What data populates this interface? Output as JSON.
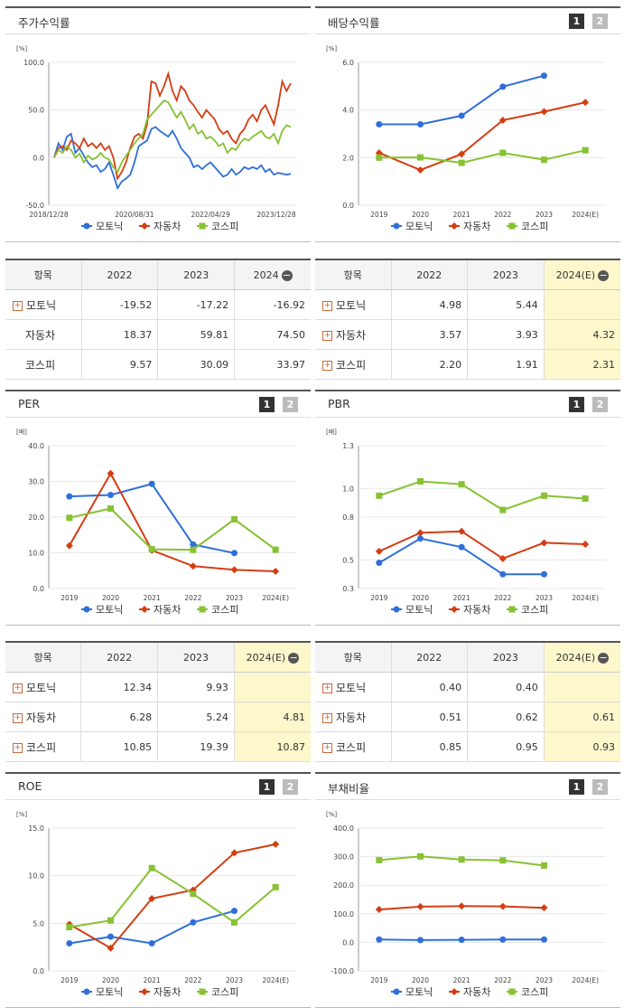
{
  "colors": {
    "motonic": "#2f6fd8",
    "auto": "#d43d12",
    "kospi": "#86c232"
  },
  "legend": [
    "모토닉",
    "자동차",
    "코스피"
  ],
  "pager": [
    "1",
    "2"
  ],
  "panels": {
    "stock": {
      "title": "주가수익률"
    },
    "dividend": {
      "title": "배당수익률"
    },
    "per": {
      "title": "PER"
    },
    "pbr": {
      "title": "PBR"
    },
    "roe": {
      "title": "ROE"
    },
    "debt": {
      "title": "부채비율"
    }
  },
  "tables": {
    "stock": {
      "headers": [
        "항목",
        "2022",
        "2023",
        "2024"
      ],
      "rows": [
        {
          "name": "모토닉",
          "v": [
            "-19.52",
            "-17.22",
            "-16.92"
          ],
          "plus": true
        },
        {
          "name": "자동차",
          "v": [
            "18.37",
            "59.81",
            "74.50"
          ],
          "plus": false
        },
        {
          "name": "코스피",
          "v": [
            "9.57",
            "30.09",
            "33.97"
          ],
          "plus": false
        }
      ]
    },
    "dividend": {
      "headers": [
        "항목",
        "2022",
        "2023",
        "2024(E)"
      ],
      "rows": [
        {
          "name": "모토닉",
          "v": [
            "4.98",
            "5.44",
            ""
          ],
          "plus": true
        },
        {
          "name": "자동차",
          "v": [
            "3.57",
            "3.93",
            "4.32"
          ],
          "plus": true
        },
        {
          "name": "코스피",
          "v": [
            "2.20",
            "1.91",
            "2.31"
          ],
          "plus": true
        }
      ]
    },
    "per": {
      "headers": [
        "항목",
        "2022",
        "2023",
        "2024(E)"
      ],
      "rows": [
        {
          "name": "모토닉",
          "v": [
            "12.34",
            "9.93",
            ""
          ],
          "plus": true
        },
        {
          "name": "자동차",
          "v": [
            "6.28",
            "5.24",
            "4.81"
          ],
          "plus": true
        },
        {
          "name": "코스피",
          "v": [
            "10.85",
            "19.39",
            "10.87"
          ],
          "plus": true
        }
      ]
    },
    "pbr": {
      "headers": [
        "항목",
        "2022",
        "2023",
        "2024(E)"
      ],
      "rows": [
        {
          "name": "모토닉",
          "v": [
            "0.40",
            "0.40",
            ""
          ],
          "plus": true
        },
        {
          "name": "자동차",
          "v": [
            "0.51",
            "0.62",
            "0.61"
          ],
          "plus": true
        },
        {
          "name": "코스피",
          "v": [
            "0.85",
            "0.95",
            "0.93"
          ],
          "plus": true
        }
      ]
    }
  },
  "chart_data": [
    {
      "id": "stock",
      "type": "line",
      "unit": "[%]",
      "x_ticks": [
        "2018/12/28",
        "2020/08/31",
        "2022/04/29",
        "2023/12/28"
      ],
      "ylim": [
        -50,
        100
      ],
      "y_ticks": [
        "100.0",
        "50.0",
        "0.0",
        "-50.0"
      ],
      "series": [
        {
          "name": "모토닉",
          "values": [
            0,
            15,
            8,
            22,
            25,
            5,
            10,
            2,
            -5,
            -10,
            -8,
            -15,
            -12,
            -5,
            -18,
            -32,
            -25,
            -22,
            -18,
            -5,
            12,
            15,
            18,
            30,
            32,
            28,
            25,
            22,
            28,
            20,
            10,
            5,
            0,
            -10,
            -8,
            -12,
            -8,
            -5,
            -10,
            -15,
            -20,
            -18,
            -12,
            -18,
            -15,
            -10,
            -12,
            -10,
            -12,
            -8,
            -15,
            -12,
            -18,
            -16,
            -17,
            -18,
            -17
          ]
        },
        {
          "name": "자동차",
          "values": [
            0,
            10,
            12,
            8,
            18,
            15,
            10,
            20,
            12,
            15,
            10,
            15,
            8,
            12,
            0,
            -22,
            -15,
            -5,
            10,
            22,
            25,
            20,
            35,
            80,
            78,
            65,
            75,
            88,
            70,
            60,
            75,
            70,
            60,
            55,
            48,
            42,
            50,
            45,
            40,
            30,
            25,
            28,
            20,
            15,
            25,
            30,
            40,
            45,
            38,
            50,
            55,
            45,
            35,
            55,
            80,
            70,
            78
          ]
        },
        {
          "name": "코스피",
          "values": [
            0,
            8,
            5,
            12,
            8,
            0,
            4,
            -5,
            2,
            -2,
            0,
            5,
            0,
            -2,
            -10,
            -15,
            -5,
            2,
            8,
            15,
            20,
            25,
            40,
            45,
            50,
            55,
            60,
            58,
            50,
            42,
            48,
            40,
            30,
            35,
            25,
            28,
            20,
            22,
            18,
            12,
            15,
            5,
            10,
            8,
            15,
            20,
            18,
            22,
            25,
            28,
            22,
            20,
            25,
            15,
            28,
            34,
            32
          ]
        }
      ]
    },
    {
      "id": "dividend",
      "type": "line",
      "unit": "[%]",
      "categories": [
        "2019",
        "2020",
        "2021",
        "2022",
        "2023",
        "2024(E)"
      ],
      "ylim": [
        0,
        6
      ],
      "y_ticks": [
        "6.0",
        "4.0",
        "2.0",
        "0.0"
      ],
      "series": [
        {
          "name": "모토닉",
          "values": [
            3.4,
            3.4,
            3.76,
            4.98,
            5.44,
            null
          ]
        },
        {
          "name": "자동차",
          "values": [
            2.2,
            1.48,
            2.15,
            3.57,
            3.93,
            4.32
          ]
        },
        {
          "name": "코스피",
          "values": [
            2.0,
            2.01,
            1.78,
            2.2,
            1.91,
            2.31
          ]
        }
      ]
    },
    {
      "id": "per",
      "type": "line",
      "unit": "[배]",
      "categories": [
        "2019",
        "2020",
        "2021",
        "2022",
        "2023",
        "2024(E)"
      ],
      "ylim": [
        0,
        40
      ],
      "y_ticks": [
        "40.0",
        "30.0",
        "20.0",
        "10.0",
        "0.0"
      ],
      "series": [
        {
          "name": "모토닉",
          "values": [
            25.8,
            26.2,
            29.3,
            12.34,
            9.93,
            null
          ]
        },
        {
          "name": "자동차",
          "values": [
            12.0,
            32.2,
            10.7,
            6.28,
            5.24,
            4.81
          ]
        },
        {
          "name": "코스피",
          "values": [
            19.8,
            22.4,
            11.0,
            10.85,
            19.39,
            10.87
          ]
        }
      ]
    },
    {
      "id": "pbr",
      "type": "line",
      "unit": "[배]",
      "categories": [
        "2019",
        "2020",
        "2021",
        "2022",
        "2023",
        "2024(E)"
      ],
      "ylim": [
        0.3,
        1.3
      ],
      "y_ticks": [
        "1.3",
        "1.0",
        "0.8",
        "0.5",
        "0.3"
      ],
      "series": [
        {
          "name": "모토닉",
          "values": [
            0.48,
            0.65,
            0.59,
            0.4,
            0.4,
            null
          ]
        },
        {
          "name": "자동차",
          "values": [
            0.56,
            0.69,
            0.7,
            0.51,
            0.62,
            0.61
          ]
        },
        {
          "name": "코스피",
          "values": [
            0.95,
            1.05,
            1.03,
            0.85,
            0.95,
            0.93
          ]
        }
      ]
    },
    {
      "id": "roe",
      "type": "line",
      "unit": "[%]",
      "categories": [
        "2019",
        "2020",
        "2021",
        "2022",
        "2023",
        "2024(E)"
      ],
      "ylim": [
        0,
        15
      ],
      "y_ticks": [
        "15.0",
        "10.0",
        "5.0",
        "0.0"
      ],
      "series": [
        {
          "name": "모토닉",
          "values": [
            2.9,
            3.6,
            2.9,
            5.1,
            6.3,
            null
          ]
        },
        {
          "name": "자동차",
          "values": [
            4.9,
            2.4,
            7.6,
            8.5,
            12.4,
            13.3
          ]
        },
        {
          "name": "코스피",
          "values": [
            4.6,
            5.3,
            10.8,
            8.1,
            5.1,
            8.8
          ]
        }
      ]
    },
    {
      "id": "debt",
      "type": "line",
      "unit": "[%]",
      "categories": [
        "2019",
        "2020",
        "2021",
        "2022",
        "2023",
        "2024(E)"
      ],
      "ylim": [
        -100,
        400
      ],
      "y_ticks": [
        "400.0",
        "300.0",
        "200.0",
        "100.0",
        "0.0",
        "-100.0"
      ],
      "series": [
        {
          "name": "모토닉",
          "values": [
            10,
            8,
            9,
            10,
            10,
            null
          ]
        },
        {
          "name": "자동차",
          "values": [
            115,
            125,
            127,
            126,
            121,
            null
          ]
        },
        {
          "name": "코스피",
          "values": [
            288,
            301,
            290,
            287,
            269,
            null
          ]
        }
      ]
    }
  ]
}
